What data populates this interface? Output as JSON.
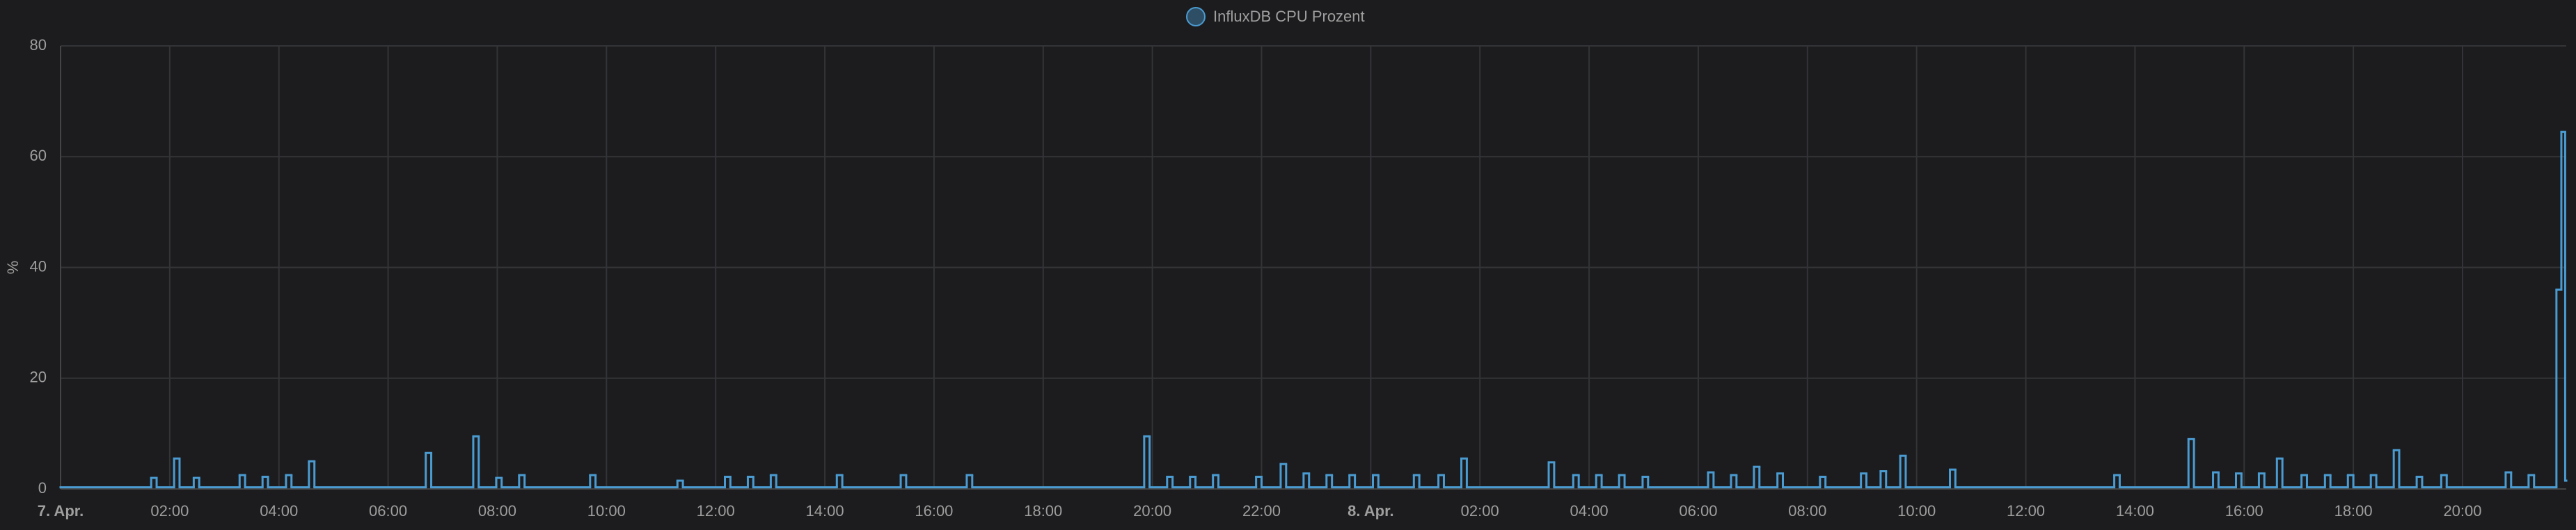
{
  "chart_data": {
    "type": "step-line",
    "ylabel": "%",
    "x": [
      0,
      1.66,
      1.76,
      2.08,
      2.18,
      2.44,
      2.54,
      3.28,
      3.38,
      3.7,
      3.8,
      4.13,
      4.23,
      4.55,
      4.65,
      6.69,
      6.79,
      7.56,
      7.66,
      7.98,
      8.08,
      8.4,
      8.5,
      9.7,
      9.8,
      11.3,
      11.4,
      12.17,
      12.27,
      12.59,
      12.69,
      13.01,
      13.11,
      14.22,
      14.32,
      15.39,
      15.49,
      16.6,
      16.7,
      19.85,
      19.95,
      20.27,
      20.37,
      20.69,
      20.79,
      21.11,
      21.21,
      21.9,
      22.0,
      22.35,
      22.45,
      22.77,
      22.87,
      23.19,
      23.29,
      23.61,
      23.71,
      24.04,
      24.14,
      24.79,
      24.89,
      25.24,
      25.34,
      25.66,
      25.76,
      27.26,
      27.36,
      27.71,
      27.81,
      28.13,
      28.23,
      28.55,
      28.65,
      28.98,
      29.08,
      30.18,
      30.28,
      30.6,
      30.7,
      31.02,
      31.12,
      31.45,
      31.55,
      32.23,
      32.33,
      32.98,
      33.08,
      33.34,
      33.44,
      33.7,
      33.8,
      34.61,
      34.71,
      37.62,
      37.72,
      38.98,
      39.08,
      39.43,
      39.53,
      39.85,
      39.95,
      40.27,
      40.37,
      40.6,
      40.7,
      41.05,
      41.15,
      41.48,
      41.58,
      41.9,
      42.0,
      42.32,
      42.42,
      42.74,
      42.84,
      43.16,
      43.26,
      43.61,
      43.71,
      44.79,
      44.89,
      45.21,
      45.31,
      45.72,
      45.81,
      45.88,
      45.9
    ],
    "series": [
      {
        "name": "InfluxDB CPU Prozent",
        "color": "#4a9bd1",
        "values": [
          0.3,
          2,
          0.3,
          5.5,
          0.3,
          2,
          0.3,
          2.5,
          0.3,
          2.2,
          0.3,
          2.5,
          0.3,
          5,
          0.3,
          6.5,
          0.3,
          9.5,
          0.3,
          2,
          0.3,
          2.5,
          0.3,
          2.5,
          0.3,
          1.5,
          0.3,
          2.2,
          0.3,
          2.2,
          0.3,
          2.5,
          0.3,
          2.5,
          0.3,
          2.5,
          0.3,
          2.5,
          0.3,
          9.5,
          0.3,
          2.2,
          0.3,
          2.2,
          0.3,
          2.5,
          0.3,
          2.2,
          0.3,
          4.5,
          0.3,
          2.8,
          0.3,
          2.5,
          0.3,
          2.5,
          0.3,
          2.5,
          0.3,
          2.5,
          0.3,
          2.5,
          0.3,
          5.5,
          0.3,
          4.8,
          0.3,
          2.5,
          0.3,
          2.5,
          0.3,
          2.5,
          0.3,
          2.2,
          0.3,
          3,
          0.3,
          2.5,
          0.3,
          4,
          0.3,
          2.8,
          0.3,
          2.2,
          0.3,
          2.8,
          0.3,
          3.2,
          0.3,
          6,
          0.3,
          3.5,
          0.3,
          2.5,
          0.3,
          9,
          0.3,
          3,
          0.3,
          2.8,
          0.3,
          2.8,
          0.3,
          5.5,
          0.3,
          2.5,
          0.3,
          2.5,
          0.3,
          2.5,
          0.3,
          2.5,
          0.3,
          7,
          0.3,
          2.2,
          0.3,
          2.5,
          0.3,
          3,
          0.3,
          2.5,
          0.3,
          36,
          64.5,
          1.5,
          1.5
        ]
      }
    ],
    "xlim": [
      0,
      45.9
    ],
    "xticks": [
      {
        "value": 0,
        "label": "7. Apr."
      },
      {
        "value": 2,
        "label": "02:00"
      },
      {
        "value": 4,
        "label": "04:00"
      },
      {
        "value": 6,
        "label": "06:00"
      },
      {
        "value": 8,
        "label": "08:00"
      },
      {
        "value": 10,
        "label": "10:00"
      },
      {
        "value": 12,
        "label": "12:00"
      },
      {
        "value": 14,
        "label": "14:00"
      },
      {
        "value": 16,
        "label": "16:00"
      },
      {
        "value": 18,
        "label": "18:00"
      },
      {
        "value": 20,
        "label": "20:00"
      },
      {
        "value": 22,
        "label": "22:00"
      },
      {
        "value": 24,
        "label": "8. Apr."
      },
      {
        "value": 26,
        "label": "02:00"
      },
      {
        "value": 28,
        "label": "04:00"
      },
      {
        "value": 30,
        "label": "06:00"
      },
      {
        "value": 32,
        "label": "08:00"
      },
      {
        "value": 34,
        "label": "10:00"
      },
      {
        "value": 36,
        "label": "12:00"
      },
      {
        "value": 38,
        "label": "14:00"
      },
      {
        "value": 40,
        "label": "16:00"
      },
      {
        "value": 42,
        "label": "18:00"
      },
      {
        "value": 44,
        "label": "20:00"
      }
    ],
    "ylim": [
      0,
      80
    ],
    "yticks": [
      0,
      20,
      40,
      60,
      80
    ],
    "grid": true
  }
}
